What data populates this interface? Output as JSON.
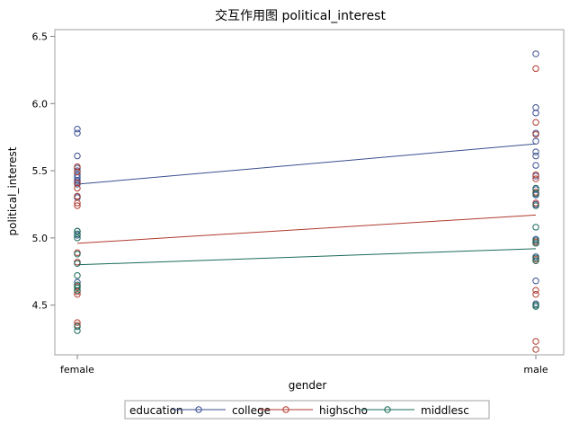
{
  "chart_data": {
    "type": "line",
    "title": "交互作用图  political_interest",
    "xlabel": "gender",
    "ylabel": "political_interest",
    "categories": [
      "female",
      "male"
    ],
    "ylim": [
      4.13,
      6.55
    ],
    "yticks": [
      "4.5",
      "5.0",
      "5.5",
      "6.0",
      "6.5"
    ],
    "grid": false,
    "legend": {
      "title": "education",
      "placement": "bottom"
    },
    "series": [
      {
        "name": "college",
        "color": "#3a4f8f",
        "line": [
          5.4,
          5.7
        ],
        "points": {
          "female": [
            5.81,
            5.78,
            5.61,
            5.52,
            5.5,
            5.47,
            5.45,
            5.43,
            5.42,
            5.4,
            5.31,
            5.3,
            5.05,
            5.02,
            4.67
          ],
          "male": [
            6.37,
            5.97,
            5.93,
            5.78,
            5.72,
            5.64,
            5.61,
            5.54,
            5.46,
            5.36,
            5.33,
            5.32,
            5.25,
            4.99,
            4.86,
            4.68,
            4.51
          ]
        }
      },
      {
        "name": "highscho",
        "color": "#b03a2e",
        "line": [
          4.96,
          5.17
        ],
        "points": {
          "female": [
            5.53,
            5.49,
            5.41,
            5.37,
            5.31,
            5.26,
            5.24,
            4.89,
            4.82,
            4.64,
            4.6,
            4.58,
            4.37,
            4.35
          ],
          "male": [
            6.26,
            5.86,
            5.77,
            5.47,
            5.44,
            5.34,
            5.26,
            4.97,
            4.84,
            4.61,
            4.58,
            4.23,
            4.17
          ]
        }
      },
      {
        "name": "middlesc",
        "color": "#1a6b5a",
        "line": [
          4.8,
          4.92
        ],
        "points": {
          "female": [
            5.05,
            5.03,
            5.0,
            4.88,
            4.81,
            4.72,
            4.65,
            4.63,
            4.61,
            4.34,
            4.31
          ],
          "male": [
            5.37,
            5.33,
            5.24,
            5.08,
            4.98,
            4.96,
            4.85,
            4.83,
            4.5,
            4.49
          ]
        }
      }
    ]
  }
}
